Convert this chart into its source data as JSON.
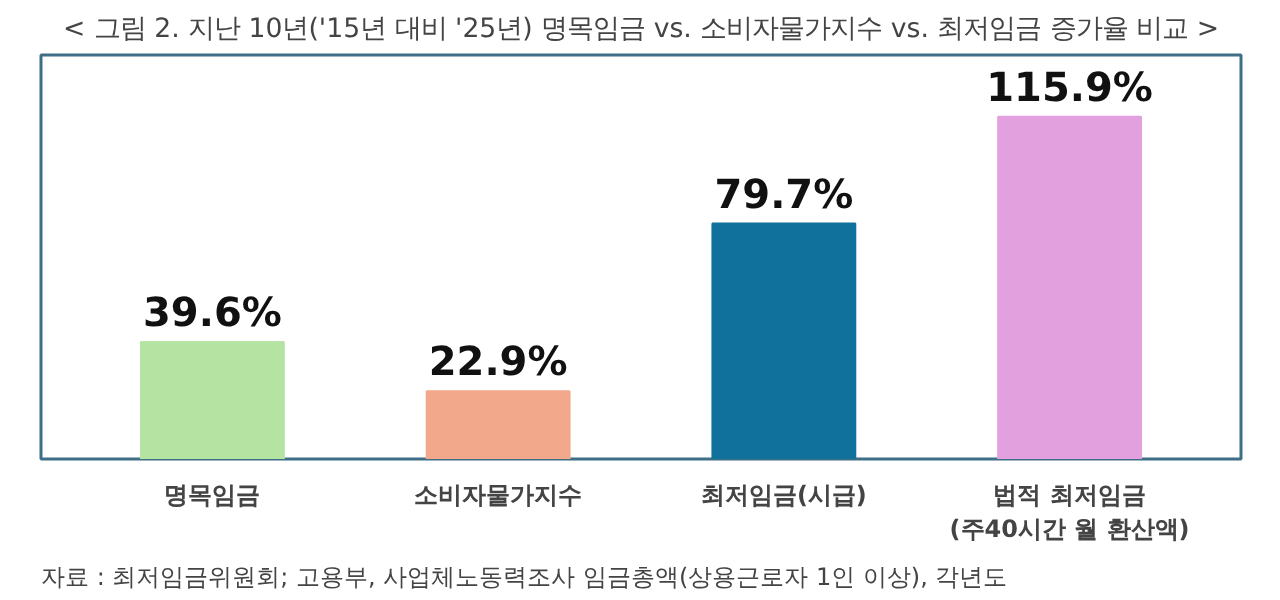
{
  "chart_data": {
    "type": "bar",
    "title": "< 그림 2. 지난 10년('15년 대비 '25년) 명목임금 vs. 소비자물가지수 vs. 최저임금 증가율 비교 >",
    "categories": [
      "명목임금",
      "소비자물가지수",
      "최저임금(시급)",
      "법적 최저임금\n(주40시간 월 환산액)"
    ],
    "values": [
      39.6,
      22.9,
      79.7,
      115.9
    ],
    "value_labels": [
      "39.6%",
      "22.9%",
      "79.7%",
      "115.9%"
    ],
    "colors": [
      "#b5e3a1",
      "#f2a88a",
      "#10729c",
      "#e3a0de"
    ],
    "annotations": [
      "자료 : 최저임금위원회; 고용부, 사업체노동력조사 임금총액(상용근로자 1인 이상), 각년도"
    ]
  }
}
